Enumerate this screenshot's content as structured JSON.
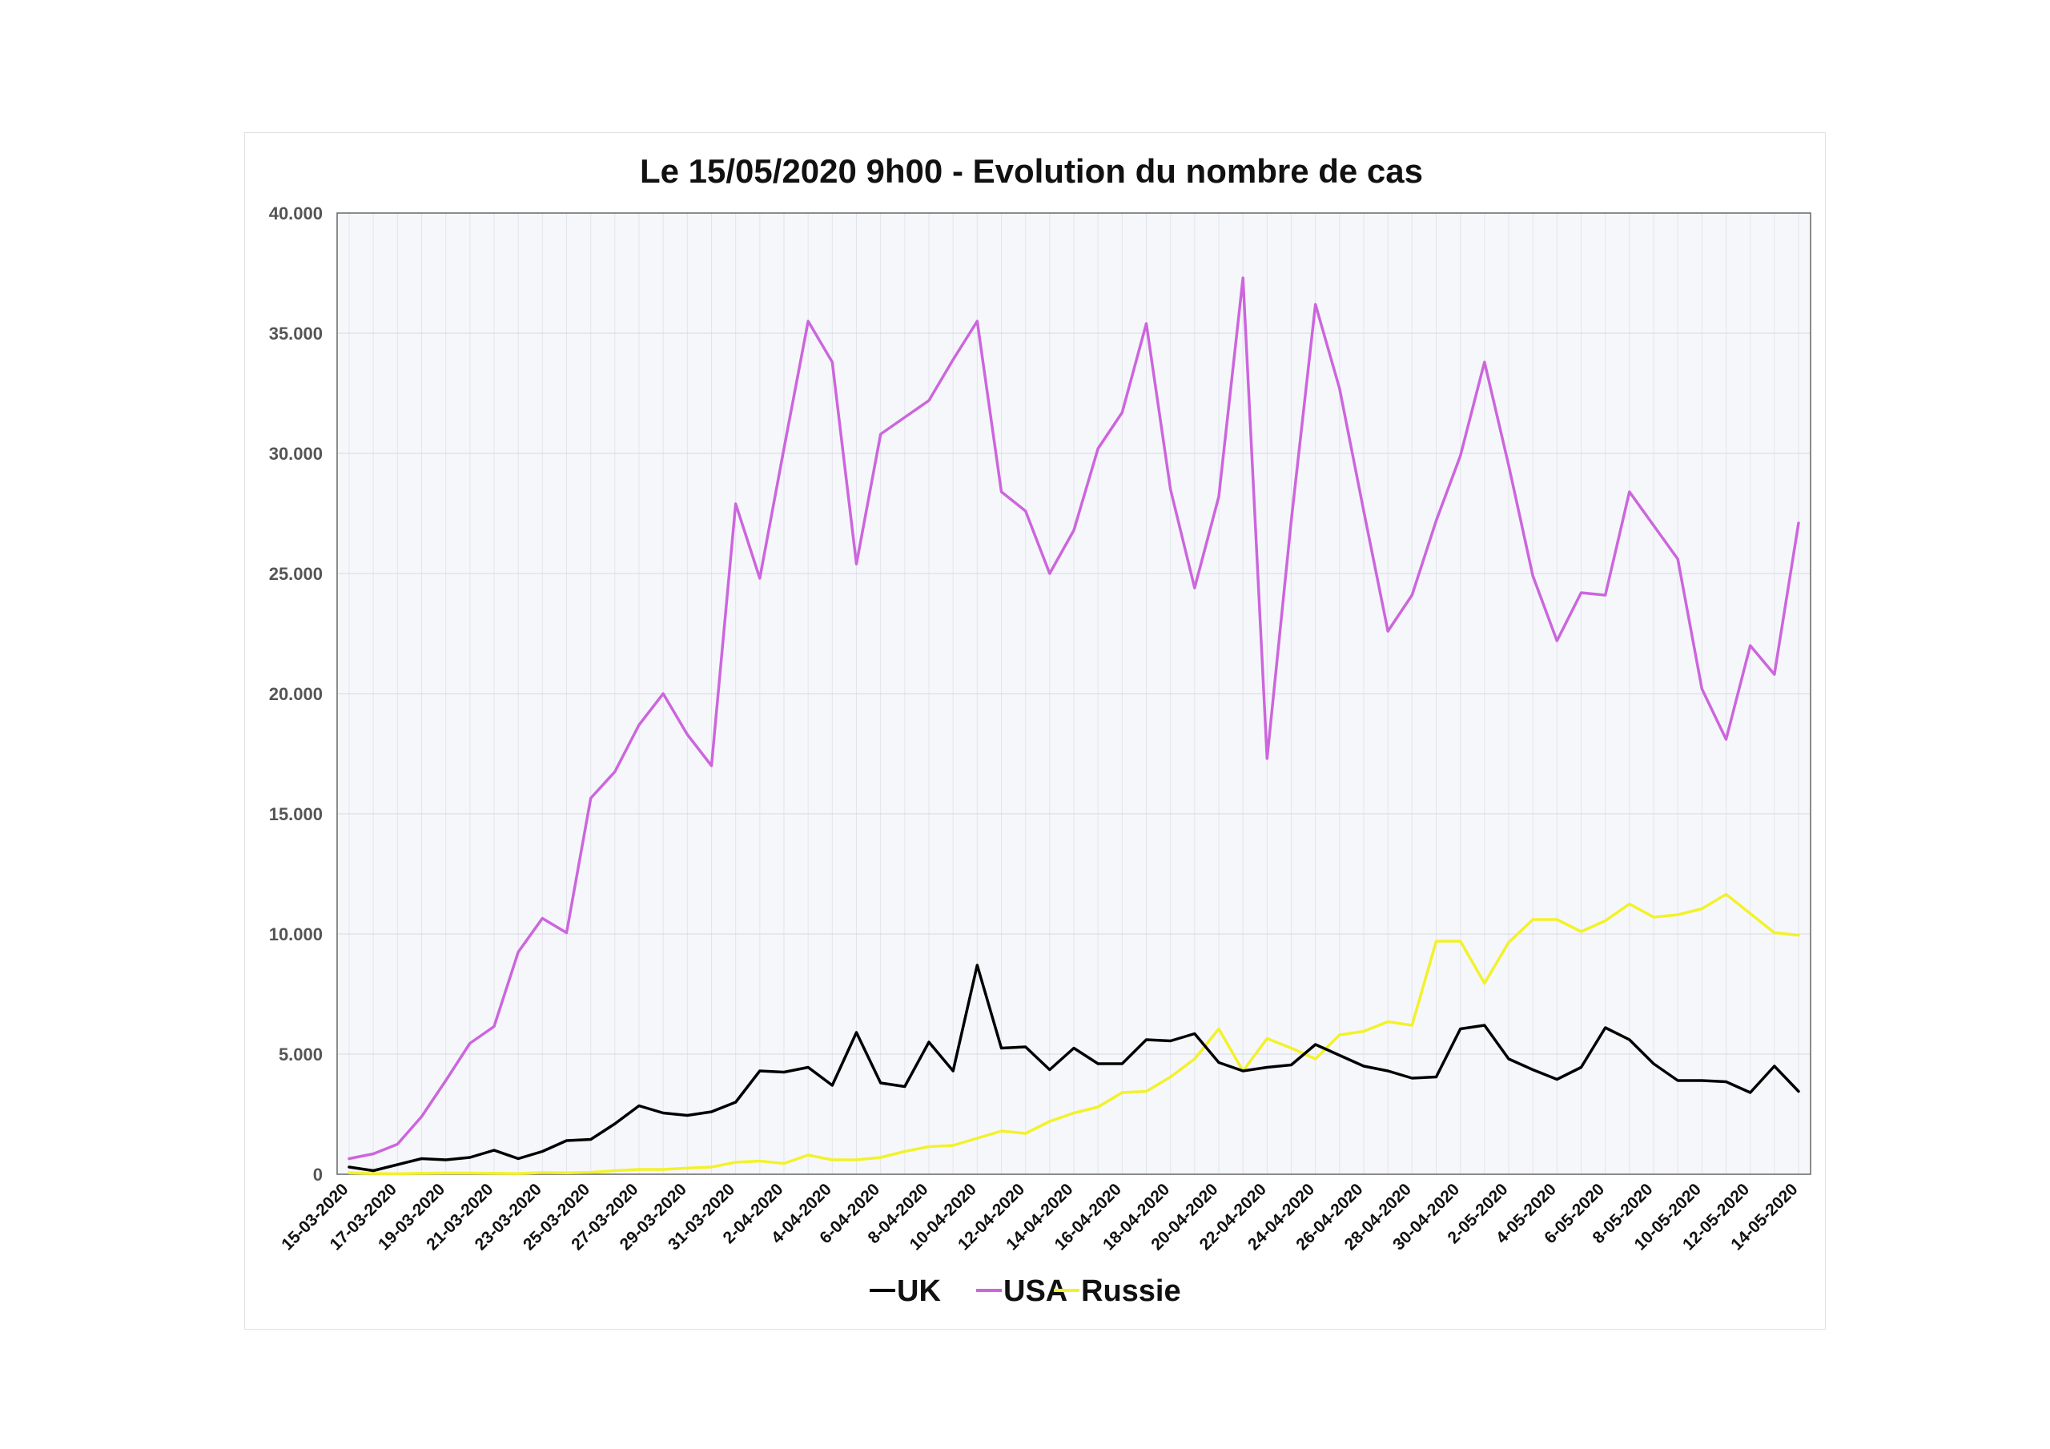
{
  "chart_data": {
    "type": "line",
    "title": "Le 15/05/2020 9h00 - Evolution du nombre de cas",
    "xlabel": "",
    "ylabel": "",
    "ylim": [
      0,
      40000
    ],
    "yticks": [
      0,
      5000,
      10000,
      15000,
      20000,
      25000,
      30000,
      35000,
      40000
    ],
    "ytick_labels": [
      "0",
      "5.000",
      "10.000",
      "15.000",
      "20.000",
      "25.000",
      "30.000",
      "35.000",
      "40.000"
    ],
    "grid": true,
    "legend_position": "bottom",
    "x": [
      "15-03-2020",
      "16-03-2020",
      "17-03-2020",
      "18-03-2020",
      "19-03-2020",
      "20-03-2020",
      "21-03-2020",
      "22-03-2020",
      "23-03-2020",
      "24-03-2020",
      "25-03-2020",
      "26-03-2020",
      "27-03-2020",
      "28-03-2020",
      "29-03-2020",
      "30-03-2020",
      "31-03-2020",
      "1-04-2020",
      "2-04-2020",
      "3-04-2020",
      "4-04-2020",
      "5-04-2020",
      "6-04-2020",
      "7-04-2020",
      "8-04-2020",
      "9-04-2020",
      "10-04-2020",
      "11-04-2020",
      "12-04-2020",
      "13-04-2020",
      "14-04-2020",
      "15-04-2020",
      "16-04-2020",
      "17-04-2020",
      "18-04-2020",
      "19-04-2020",
      "20-04-2020",
      "21-04-2020",
      "22-04-2020",
      "23-04-2020",
      "24-04-2020",
      "25-04-2020",
      "26-04-2020",
      "27-04-2020",
      "28-04-2020",
      "29-04-2020",
      "30-04-2020",
      "1-05-2020",
      "2-05-2020",
      "3-05-2020",
      "4-05-2020",
      "5-05-2020",
      "6-05-2020",
      "7-05-2020",
      "8-05-2020",
      "9-05-2020",
      "10-05-2020",
      "11-05-2020",
      "12-05-2020",
      "13-05-2020",
      "14-05-2020"
    ],
    "xtick_labels": [
      "15-03-2020",
      "17-03-2020",
      "19-03-2020",
      "21-03-2020",
      "23-03-2020",
      "25-03-2020",
      "27-03-2020",
      "29-03-2020",
      "31-03-2020",
      "2-04-2020",
      "4-04-2020",
      "6-04-2020",
      "8-04-2020",
      "10-04-2020",
      "12-04-2020",
      "14-04-2020",
      "16-04-2020",
      "18-04-2020",
      "20-04-2020",
      "22-04-2020",
      "24-04-2020",
      "26-04-2020",
      "28-04-2020",
      "30-04-2020",
      "2-05-2020",
      "4-05-2020",
      "6-05-2020",
      "8-05-2020",
      "10-05-2020",
      "12-05-2020",
      "14-05-2020"
    ],
    "series": [
      {
        "name": "UK",
        "color": "#000000",
        "values": [
          300,
          150,
          400,
          650,
          600,
          700,
          1000,
          650,
          950,
          1400,
          1450,
          2100,
          2850,
          2550,
          2450,
          2600,
          3000,
          4300,
          4250,
          4450,
          3700,
          5900,
          3800,
          3650,
          5500,
          4300,
          8700,
          5250,
          5300,
          4350,
          5250,
          4600,
          4600,
          5600,
          5550,
          5850,
          4650,
          4300,
          4450,
          4550,
          5400,
          4950,
          4500,
          4300,
          4000,
          4050,
          6050,
          6200,
          4800,
          4350,
          3950,
          4450,
          6100,
          5600,
          4600,
          3900,
          3900,
          3850,
          3400,
          4500,
          3450
        ]
      },
      {
        "name": "USA",
        "color": "#cc66dd",
        "values": [
          650,
          850,
          1250,
          2400,
          3900,
          5450,
          6150,
          9250,
          10650,
          10050,
          15650,
          16750,
          18700,
          20000,
          18300,
          17000,
          27900,
          24800,
          30200,
          35500,
          33800,
          25400,
          30800,
          31500,
          32200,
          33900,
          35500,
          28400,
          27600,
          25000,
          26800,
          30200,
          31700,
          35400,
          28500,
          24400,
          28200,
          37300,
          17300,
          27200,
          36200,
          32700,
          27600,
          22600,
          24100,
          27200,
          29900,
          33800,
          29500,
          24900,
          22200,
          24200,
          24100,
          28400,
          27000,
          25600,
          20200,
          18100,
          22000,
          20800,
          27100
        ]
      },
      {
        "name": "Russie",
        "color": "#f2f22a",
        "values": [
          60,
          30,
          20,
          40,
          50,
          50,
          40,
          30,
          70,
          60,
          80,
          150,
          200,
          200,
          260,
          300,
          500,
          550,
          450,
          800,
          600,
          600,
          700,
          950,
          1150,
          1200,
          1500,
          1800,
          1700,
          2200,
          2550,
          2800,
          3400,
          3450,
          4050,
          4800,
          6050,
          4300,
          5650,
          5250,
          4800,
          5800,
          5950,
          6350,
          6200,
          9700,
          9700,
          7950,
          9650,
          10600,
          10600,
          10100,
          10550,
          11250,
          10700,
          10800,
          11050,
          11650,
          10850,
          10050,
          9950
        ]
      }
    ]
  }
}
